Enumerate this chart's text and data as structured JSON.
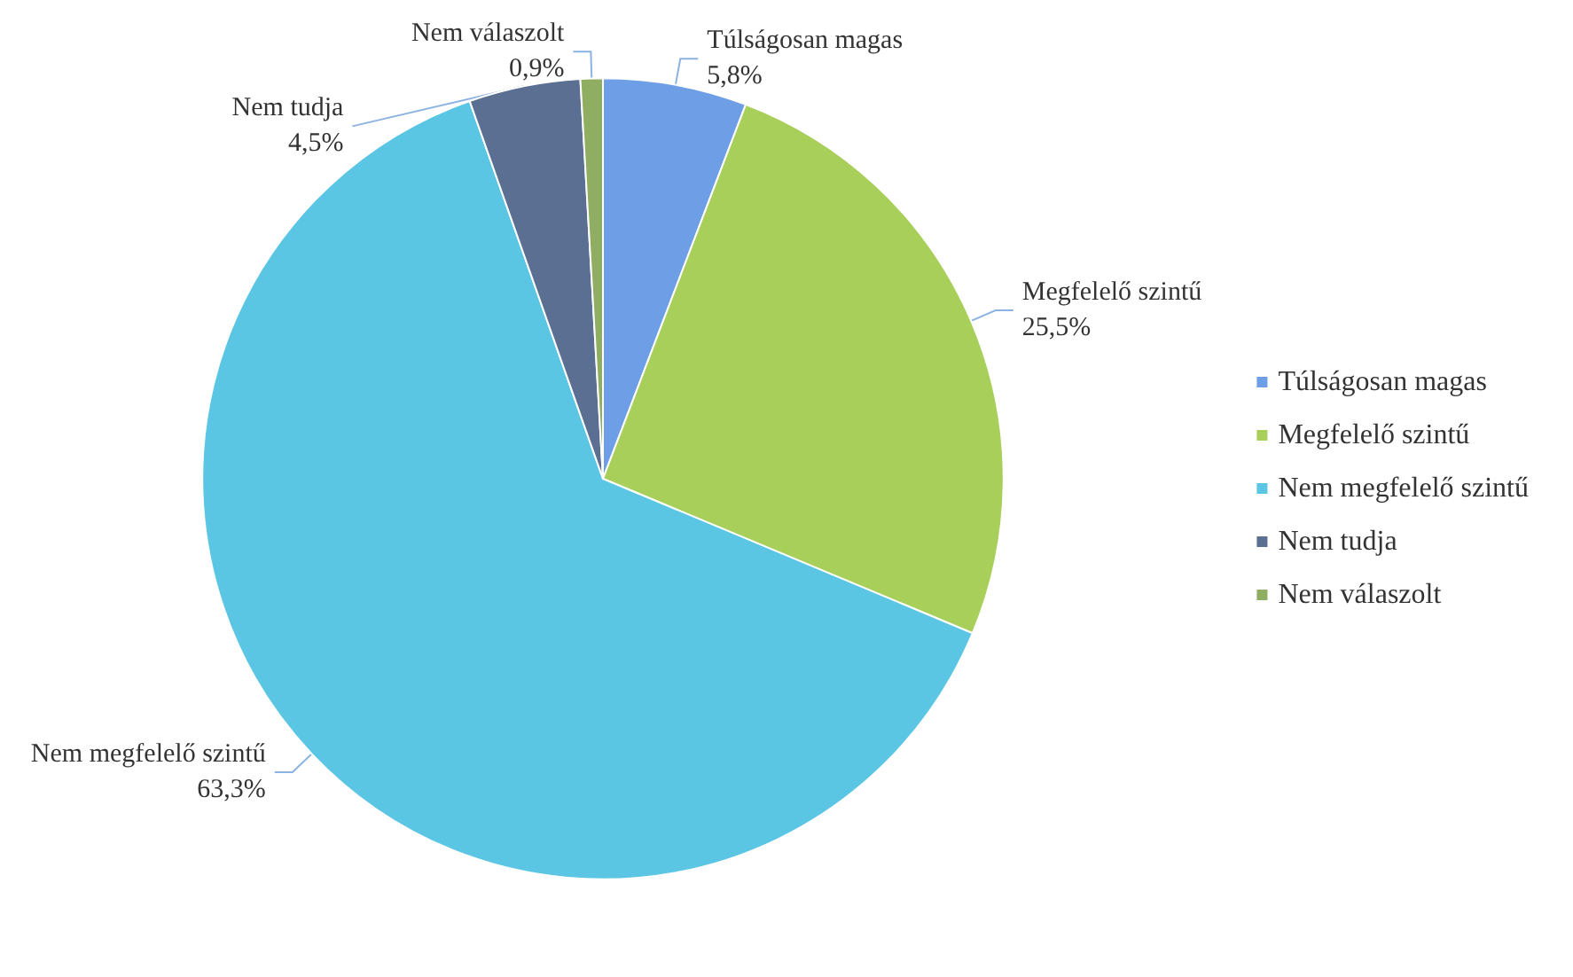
{
  "chart_data": {
    "type": "pie",
    "categories": [
      "Túlságosan magas",
      "Megfelelő szintű",
      "Nem megfelelő szintű",
      "Nem tudja",
      "Nem válaszolt"
    ],
    "values": [
      5.8,
      25.5,
      63.3,
      4.5,
      0.9
    ],
    "colors": [
      "#6e9fe6",
      "#a8cf5a",
      "#5ac6e4",
      "#5b6f92",
      "#8fae62"
    ],
    "value_labels": [
      "5,8%",
      "25,5%",
      "63,3%",
      "4,5%",
      "0,9%"
    ],
    "legend": "right"
  }
}
